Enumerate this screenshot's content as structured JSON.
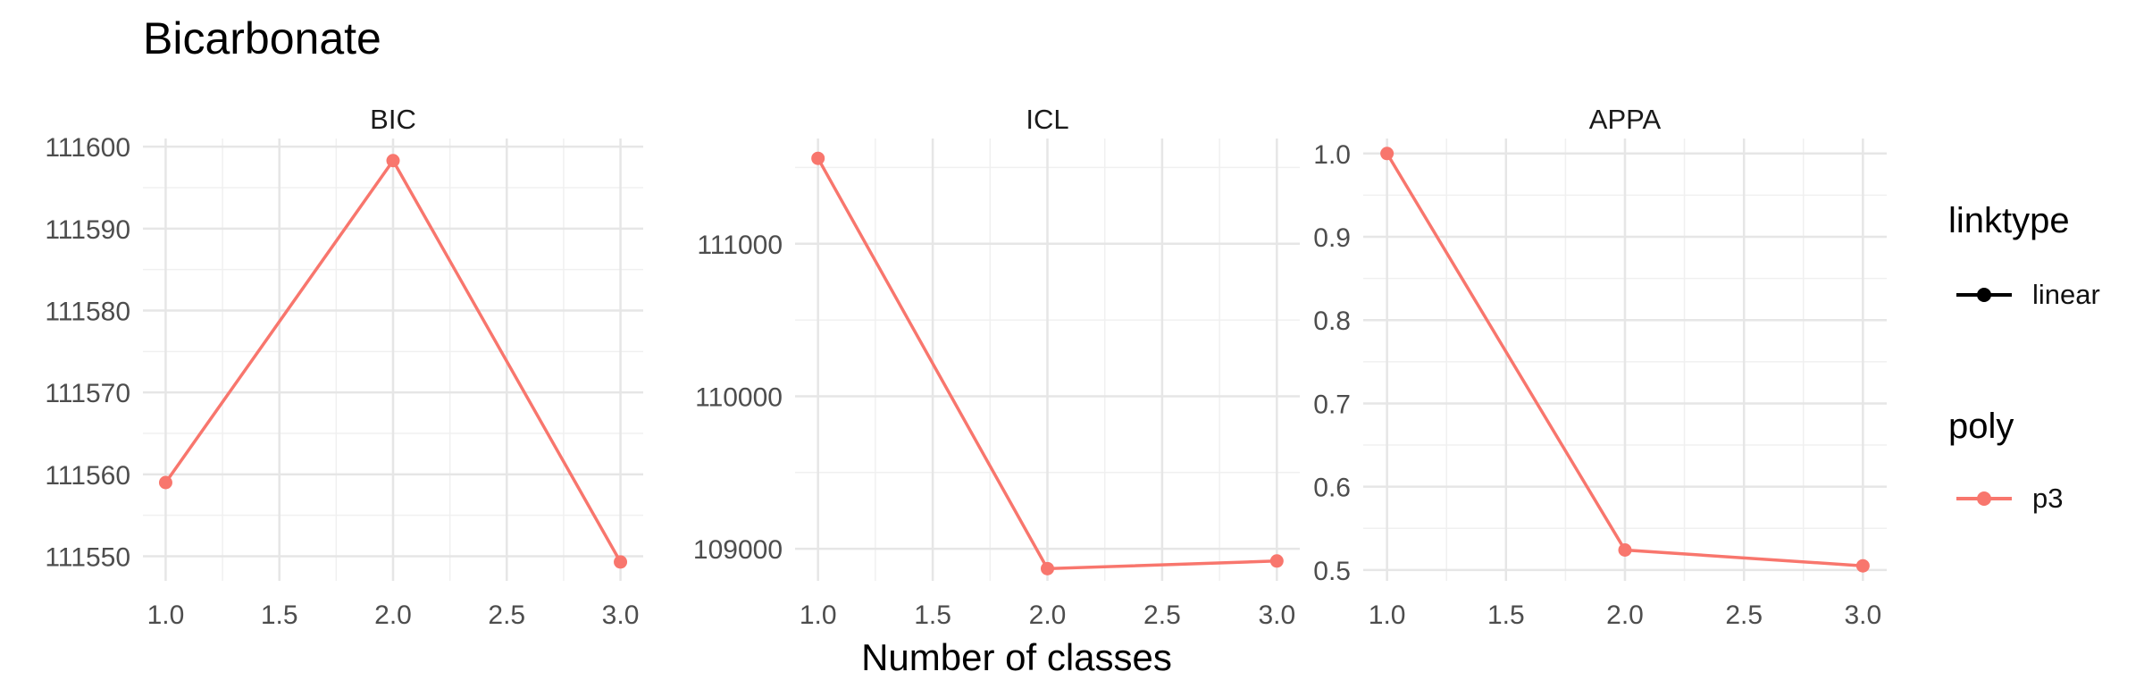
{
  "chart_data": {
    "type": "line",
    "title": "Bicarbonate",
    "xlabel": "Number of classes",
    "x_ticks": [
      "1.0",
      "1.5",
      "2.0",
      "2.5",
      "3.0"
    ],
    "grid": true,
    "panels": [
      {
        "name": "BIC",
        "x": [
          1,
          2,
          3
        ],
        "y": [
          111559,
          111598.3,
          111549.3
        ],
        "ylim": [
          111547,
          111601
        ],
        "y_ticks": [
          111550,
          111560,
          111570,
          111580,
          111590,
          111600
        ],
        "y_tick_labels": [
          "111550",
          "111560",
          "111570",
          "111580",
          "111590",
          "111600"
        ]
      },
      {
        "name": "ICL",
        "x": [
          1,
          2,
          3
        ],
        "y": [
          111560,
          108870,
          108920
        ],
        "ylim": [
          108790,
          111690
        ],
        "y_ticks": [
          109000,
          110000,
          111000
        ],
        "y_tick_labels": [
          "109000",
          "110000",
          "111000"
        ]
      },
      {
        "name": "APPA",
        "x": [
          1,
          2,
          3
        ],
        "y": [
          1.0,
          0.524,
          0.505
        ],
        "ylim": [
          0.487,
          1.018
        ],
        "y_ticks": [
          0.5,
          0.6,
          0.7,
          0.8,
          0.9,
          1.0
        ],
        "y_tick_labels": [
          "0.5",
          "0.6",
          "0.7",
          "0.8",
          "0.9",
          "1.0"
        ]
      }
    ],
    "series": [
      {
        "name": "p3",
        "color": "#F8766D"
      }
    ],
    "legend": {
      "position": "right",
      "groups": [
        {
          "title": "linktype",
          "items": [
            {
              "label": "linear",
              "color": "#000000"
            }
          ]
        },
        {
          "title": "poly",
          "items": [
            {
              "label": "p3",
              "color": "#F8766D"
            }
          ]
        }
      ]
    }
  }
}
